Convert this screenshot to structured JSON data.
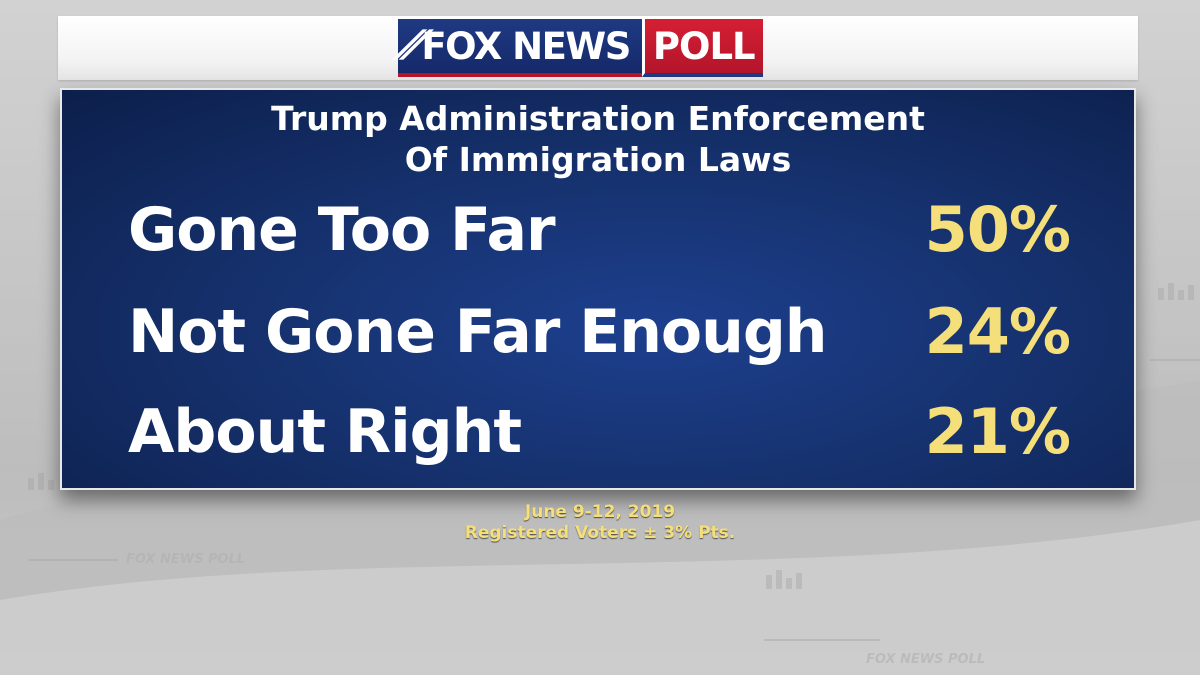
{
  "brand": {
    "network": "FOX NEWS",
    "poll": "POLL",
    "watermark": "FOX NEWS POLL"
  },
  "colors": {
    "panel_blue": "#16326f",
    "value_yellow": "#f5df7a",
    "brand_red": "#b3152b",
    "brand_blue": "#1f3a83"
  },
  "chart_data": {
    "type": "table",
    "title_lines": [
      "Trump Administration Enforcement",
      "Of Immigration Laws"
    ],
    "categories": [
      "Gone Too Far",
      "Not Gone Far Enough",
      "About Right"
    ],
    "values": [
      50,
      24,
      21
    ],
    "value_labels": [
      "50%",
      "24%",
      "21%"
    ],
    "unit": "%"
  },
  "footer": {
    "date": "June 9-12, 2019",
    "sample": "Registered Voters ± 3% Pts."
  }
}
